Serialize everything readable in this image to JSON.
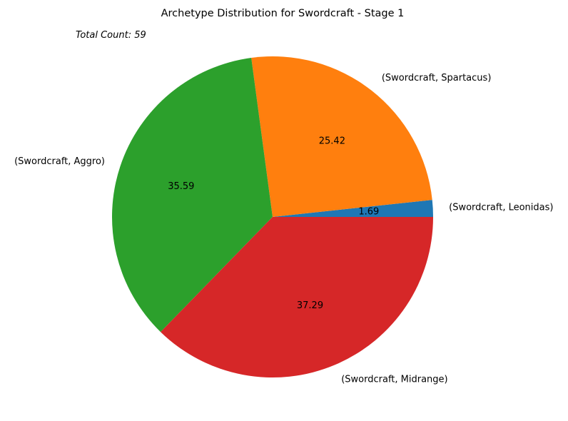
{
  "chart_data": {
    "type": "pie",
    "title": "Archetype Distribution for Swordcraft - Stage 1",
    "annotation": "Total Count: 59",
    "categories": [
      "(Swordcraft, Leonidas)",
      "(Swordcraft, Spartacus)",
      "(Swordcraft, Aggro)",
      "(Swordcraft, Midrange)"
    ],
    "values": [
      1,
      15,
      21,
      22
    ],
    "percent_labels": [
      "1.69",
      "25.42",
      "35.59",
      "37.29"
    ],
    "colors": [
      "#1f77b4",
      "#ff7f0e",
      "#2ca02c",
      "#d62728"
    ],
    "start_angle_deg": 0,
    "direction": "counterclockwise"
  }
}
